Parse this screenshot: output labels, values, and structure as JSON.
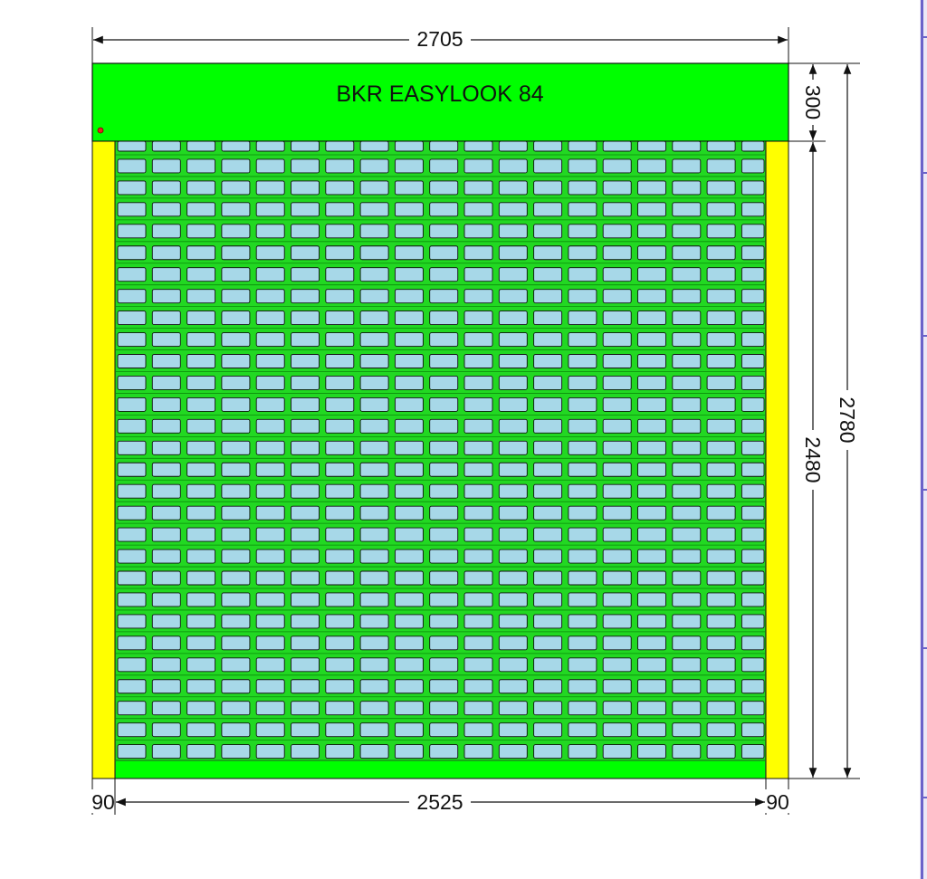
{
  "title": "BKR EASYLOOK 84",
  "dimensions": {
    "total_width": "2705",
    "total_height": "2780",
    "box_height": "300",
    "curtain_height": "2480",
    "left_guide": "90",
    "opening_width": "2525",
    "right_guide": "90"
  },
  "grid": {
    "rows": 29,
    "columns": 19
  },
  "colors": {
    "box": "#00ff00",
    "curtain": "#22d822",
    "guide_rails": "#ffff00",
    "slat_windows": "#a7d8e8",
    "outline": "#111111",
    "dimension_lines": "#111111",
    "indicator_dot": "#e0261f",
    "scrollbar": "#6b63c9"
  }
}
